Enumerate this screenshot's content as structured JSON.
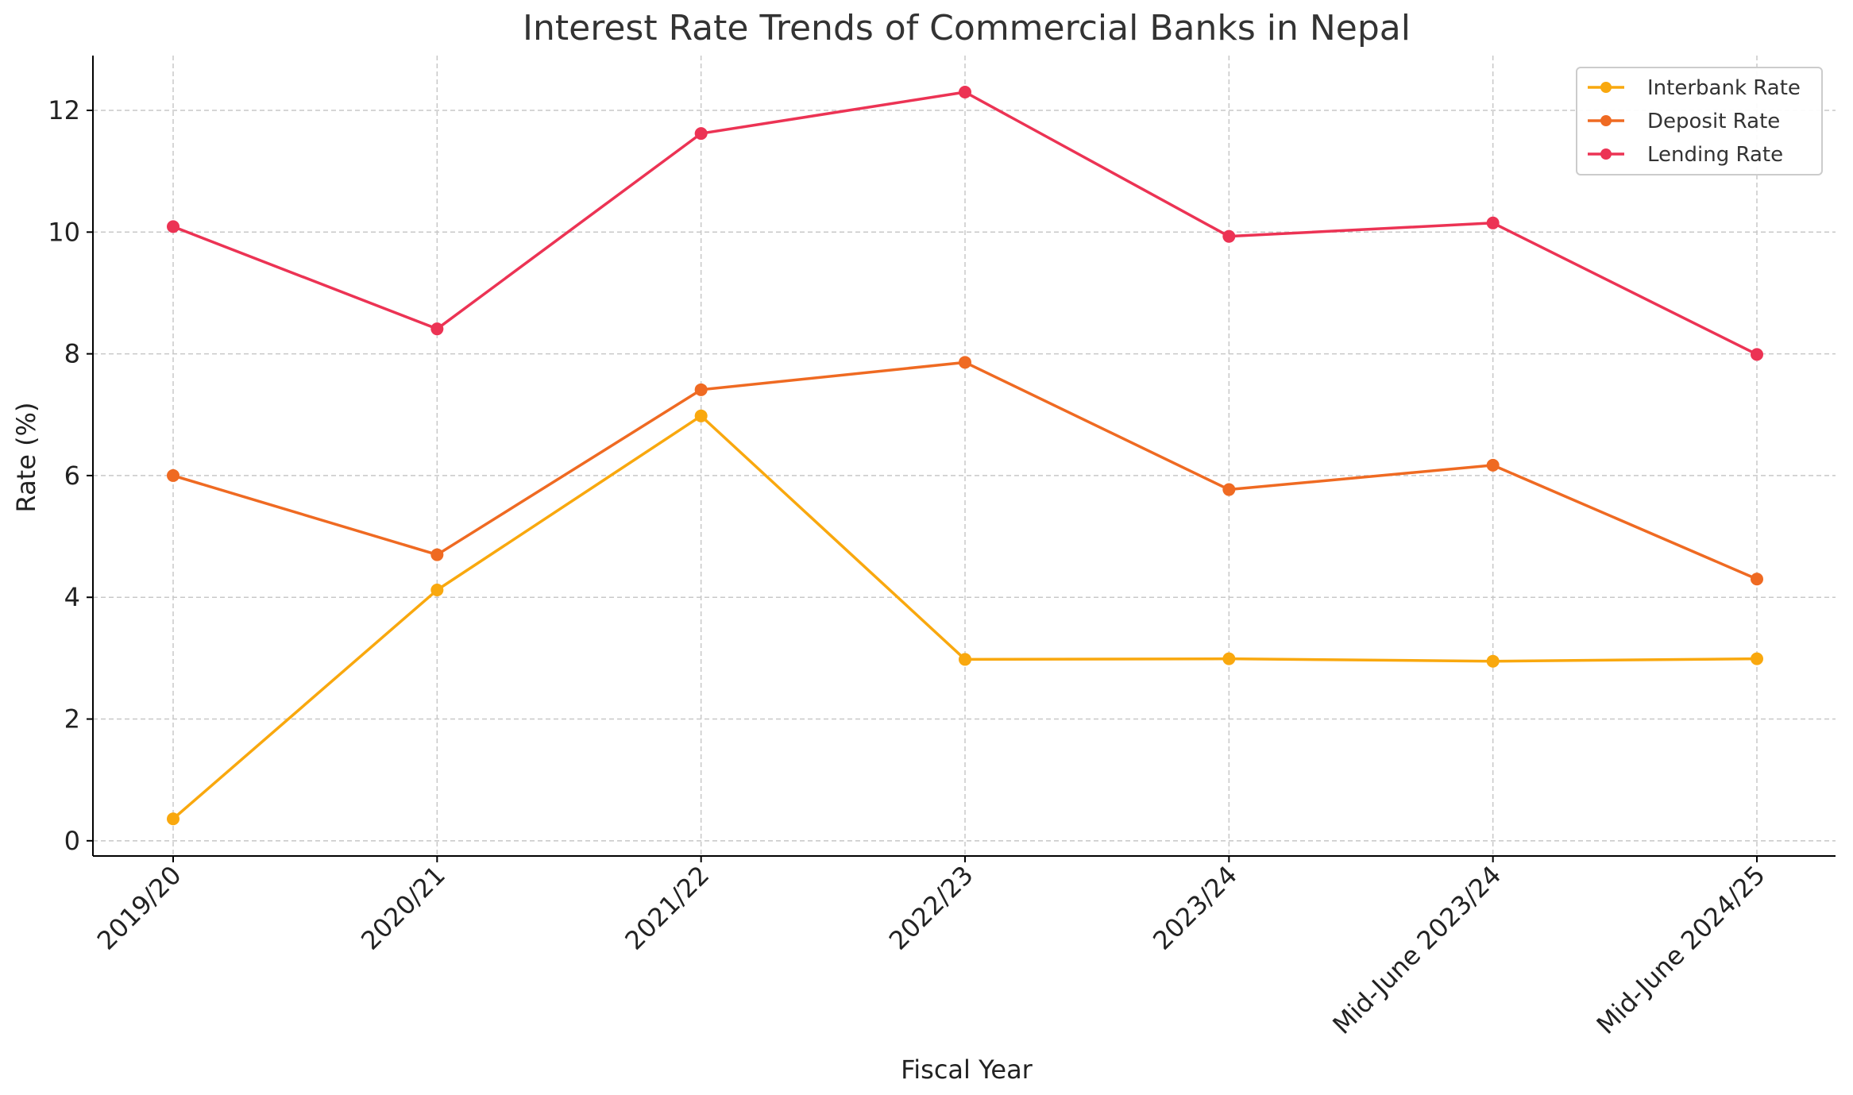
{
  "chart_data": {
    "type": "line",
    "title": "Interest Rate Trends of Commercial Banks in Nepal",
    "xlabel": "Fiscal Year",
    "ylabel": "Rate (%)",
    "categories": [
      "2019/20",
      "2020/21",
      "2021/22",
      "2022/23",
      "2023/24",
      "Mid-June 2023/24",
      "Mid-June 2024/25"
    ],
    "yticks": [
      0,
      2,
      4,
      6,
      8,
      10,
      12
    ],
    "ylim": [
      -0.25,
      12.9
    ],
    "grid": true,
    "legend_position": "top-right",
    "series": [
      {
        "name": "Interbank Rate",
        "color": "#f9a80e",
        "values": [
          0.36,
          4.12,
          6.98,
          2.98,
          2.99,
          2.95,
          2.99
        ]
      },
      {
        "name": "Deposit Rate",
        "color": "#ef6a22",
        "values": [
          6.0,
          4.7,
          7.41,
          7.86,
          5.77,
          6.17,
          4.3
        ]
      },
      {
        "name": "Lending Rate",
        "color": "#ec3354",
        "values": [
          10.09,
          8.41,
          11.62,
          12.3,
          9.93,
          10.15,
          7.99
        ]
      }
    ]
  }
}
